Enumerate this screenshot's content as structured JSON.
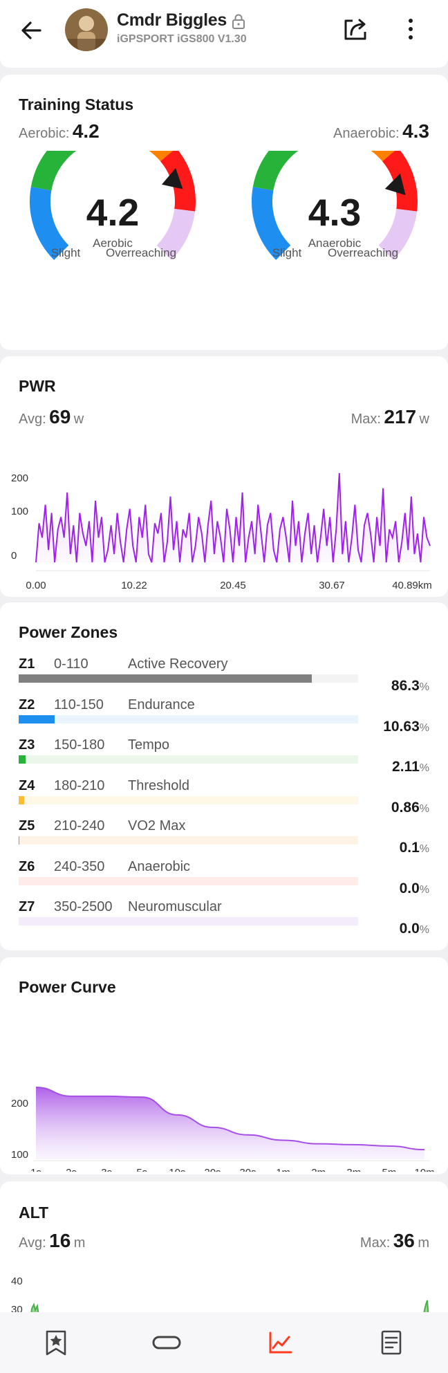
{
  "header": {
    "title": "Cmdr Biggles",
    "device": "iGPSPORT iGS800  V1.30",
    "icons": {
      "back": "arrow-left-icon",
      "lock": "lock-icon",
      "share": "share-icon",
      "more": "more-vertical-icon"
    }
  },
  "training_status": {
    "title": "Training Status",
    "aerobic_label": "Aerobic:",
    "aerobic_value": "4.2",
    "anaerobic_label": "Anaerobic:",
    "anaerobic_value": "4.3",
    "gauges": [
      {
        "value": "4.2",
        "label": "Aerobic",
        "level": 4.2,
        "low": "Slight",
        "high": "Overreaching"
      },
      {
        "value": "4.3",
        "label": "Anaerobic",
        "level": 4.3,
        "low": "Slight",
        "high": "Overreaching"
      }
    ],
    "segment_colors": [
      "#1f8ef1",
      "#27b33a",
      "#fdbd33",
      "#ff7f00",
      "#ff1a1a",
      "#e6c8f5"
    ]
  },
  "pwr": {
    "title": "PWR",
    "avg_label": "Avg:",
    "avg_value": "69",
    "avg_unit": "w",
    "max_label": "Max:",
    "max_value": "217",
    "max_unit": "w"
  },
  "power_zones": {
    "title": "Power Zones",
    "percent_sign": "%",
    "zones": [
      {
        "name": "Z1",
        "range": "0-110",
        "label": "Active Recovery",
        "pct": "86.3",
        "fraction": 0.863,
        "color": "#808080",
        "bg": "#f3f3f3"
      },
      {
        "name": "Z2",
        "range": "110-150",
        "label": "Endurance",
        "pct": "10.63",
        "fraction": 0.1063,
        "color": "#1f8ef1",
        "bg": "#eaf4fd"
      },
      {
        "name": "Z3",
        "range": "150-180",
        "label": "Tempo",
        "pct": "2.11",
        "fraction": 0.0211,
        "color": "#27b33a",
        "bg": "#eaf7ea"
      },
      {
        "name": "Z4",
        "range": "180-210",
        "label": "Threshold",
        "pct": "0.86",
        "fraction": 0.0086,
        "color": "#fdbd33",
        "bg": "#fef9e7"
      },
      {
        "name": "Z5",
        "range": "210-240",
        "label": "VO2 Max",
        "pct": "0.1",
        "fraction": 0.001,
        "color": "#ff7f00",
        "bg": "#fff3e6"
      },
      {
        "name": "Z6",
        "range": "240-350",
        "label": "Anaerobic",
        "pct": "0.0",
        "fraction": 0,
        "color": "#ff1a1a",
        "bg": "#ffece9"
      },
      {
        "name": "Z7",
        "range": "350-2500",
        "label": "Neuromuscular",
        "pct": "0.0",
        "fraction": 0,
        "color": "#b36ee0",
        "bg": "#f5ecfb"
      }
    ]
  },
  "power_curve": {
    "title": "Power Curve"
  },
  "alt": {
    "title": "ALT",
    "avg_label": "Avg:",
    "avg_value": "16",
    "avg_unit": "m",
    "max_label": "Max:",
    "max_value": "36",
    "max_unit": "m"
  },
  "bottom_nav": {
    "items": [
      "bookmark-star-icon",
      "loop-icon",
      "chart-icon",
      "document-icon"
    ],
    "active_color": "#ff3b1f"
  },
  "chart_data": [
    {
      "type": "line",
      "series": [
        {
          "values": [
            0,
            95,
            60,
            140,
            30,
            120,
            0,
            80,
            110,
            60,
            170,
            20,
            90,
            0,
            120,
            70,
            40,
            100,
            0,
            150,
            60,
            110,
            0,
            30,
            90,
            20,
            120,
            50,
            0,
            80,
            130,
            40,
            0,
            110,
            60,
            140,
            20,
            0,
            95,
            70,
            120,
            0,
            50,
            160,
            30,
            100,
            0,
            80,
            60,
            120,
            0,
            40,
            110,
            70,
            0,
            90,
            150,
            20,
            100,
            60,
            0,
            130,
            80,
            0,
            110,
            40,
            170,
            0,
            60,
            100,
            20,
            140,
            70,
            0,
            90,
            120,
            30,
            0,
            80,
            110,
            60,
            0,
            150,
            40,
            100,
            0,
            70,
            120,
            20,
            90,
            0,
            60,
            130,
            40,
            110,
            0,
            80,
            217,
            20,
            100,
            0,
            60,
            140,
            30,
            0,
            90,
            120,
            70,
            0,
            110,
            40,
            180,
            0,
            80,
            60,
            100,
            0,
            50,
            120,
            30,
            160,
            20,
            70,
            0,
            110,
            60,
            40
          ]
        }
      ],
      "x_ticks": [
        "0.00",
        "10.22",
        "20.45",
        "30.67",
        "40.89km"
      ],
      "y_ticks": [
        "200",
        "100",
        "0"
      ],
      "ylim": [
        0,
        217
      ],
      "color": "#a020f0"
    },
    {
      "type": "area",
      "categories": [
        "1s",
        "2s",
        "3s",
        "5s",
        "10s",
        "20s",
        "30s",
        "1m",
        "2m",
        "3m",
        "5m",
        "10m"
      ],
      "values": [
        217,
        197,
        197,
        195,
        155,
        127,
        110,
        98,
        90,
        88,
        85,
        77
      ],
      "y_ticks": [
        "200",
        "100"
      ],
      "color": "#a64ee6"
    },
    {
      "type": "line",
      "y_ticks": [
        "40",
        "30"
      ],
      "color": "#4caf50"
    }
  ]
}
